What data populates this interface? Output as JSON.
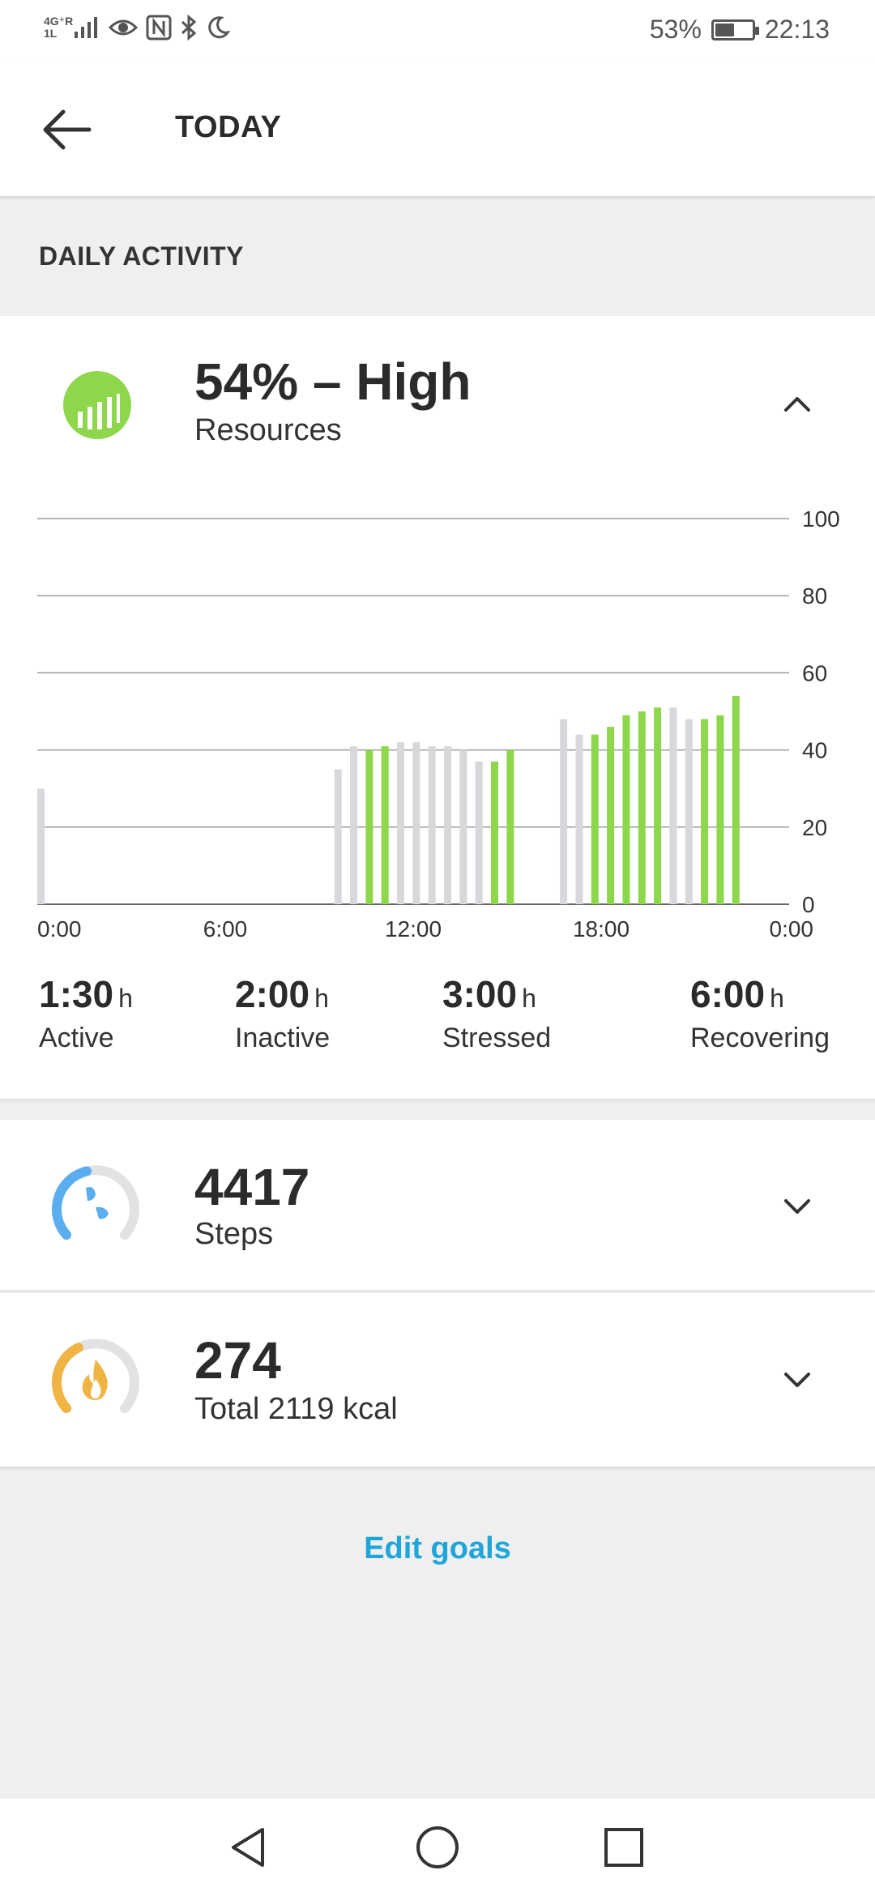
{
  "status_bar": {
    "network": "4G⁺R 1L",
    "battery_percent_label": "53%",
    "battery_level": 0.53,
    "time": "22:13",
    "icons": [
      "signal-icon",
      "eye-icon",
      "nfc-icon",
      "bluetooth-icon",
      "moon-icon",
      "battery-icon"
    ]
  },
  "header": {
    "title": "TODAY"
  },
  "section": {
    "title": "DAILY ACTIVITY"
  },
  "resources": {
    "value": "54% – High",
    "label": "Resources",
    "icon": "resources-icon",
    "accent": "#8ed64b"
  },
  "chart_data": {
    "type": "bar",
    "x_ticks": [
      "0:00",
      "6:00",
      "12:00",
      "18:00",
      "0:00"
    ],
    "y_ticks": [
      "100",
      "80",
      "60",
      "40",
      "20",
      "0"
    ],
    "ylim": [
      0,
      100
    ],
    "x_range_hours": [
      0,
      24
    ],
    "grid": true,
    "colors": {
      "inactive": "#d8d8dc",
      "recovering": "#8ed64b",
      "grid": "#9a9a9a",
      "axis": "#666666"
    },
    "bars": [
      {
        "hour": 0.1,
        "value": 30,
        "state": "inactive"
      },
      {
        "hour": 9.6,
        "value": 35,
        "state": "inactive"
      },
      {
        "hour": 10.1,
        "value": 41,
        "state": "inactive"
      },
      {
        "hour": 10.6,
        "value": 40,
        "state": "recovering"
      },
      {
        "hour": 11.1,
        "value": 41,
        "state": "recovering"
      },
      {
        "hour": 11.6,
        "value": 42,
        "state": "inactive"
      },
      {
        "hour": 12.1,
        "value": 42,
        "state": "inactive"
      },
      {
        "hour": 12.6,
        "value": 41,
        "state": "inactive"
      },
      {
        "hour": 13.1,
        "value": 41,
        "state": "inactive"
      },
      {
        "hour": 13.6,
        "value": 40,
        "state": "inactive"
      },
      {
        "hour": 14.1,
        "value": 37,
        "state": "inactive"
      },
      {
        "hour": 14.6,
        "value": 37,
        "state": "recovering"
      },
      {
        "hour": 15.1,
        "value": 40,
        "state": "recovering"
      },
      {
        "hour": 16.8,
        "value": 48,
        "state": "inactive"
      },
      {
        "hour": 17.3,
        "value": 44,
        "state": "inactive"
      },
      {
        "hour": 17.8,
        "value": 44,
        "state": "recovering"
      },
      {
        "hour": 18.3,
        "value": 46,
        "state": "recovering"
      },
      {
        "hour": 18.8,
        "value": 49,
        "state": "recovering"
      },
      {
        "hour": 19.3,
        "value": 50,
        "state": "recovering"
      },
      {
        "hour": 19.8,
        "value": 51,
        "state": "recovering"
      },
      {
        "hour": 20.3,
        "value": 51,
        "state": "inactive"
      },
      {
        "hour": 20.8,
        "value": 48,
        "state": "inactive"
      },
      {
        "hour": 21.3,
        "value": 48,
        "state": "recovering"
      },
      {
        "hour": 21.8,
        "value": 49,
        "state": "recovering"
      },
      {
        "hour": 22.3,
        "value": 54,
        "state": "recovering"
      }
    ]
  },
  "stats": [
    {
      "value": "1:30",
      "unit": "h",
      "label": "Active"
    },
    {
      "value": "2:00",
      "unit": "h",
      "label": "Inactive"
    },
    {
      "value": "3:00",
      "unit": "h",
      "label": "Stressed"
    },
    {
      "value": "6:00",
      "unit": "h",
      "label": "Recovering"
    }
  ],
  "steps": {
    "value": "4417",
    "label": "Steps",
    "icon": "steps-icon",
    "accent": "#5aaef0",
    "progress": 0.45
  },
  "calories": {
    "value": "274",
    "label": "Total 2119 kcal",
    "icon": "flame-icon",
    "accent": "#f0b444",
    "progress": 0.4
  },
  "actions": {
    "edit_goals": "Edit goals"
  },
  "nav": {
    "icons": [
      "back-triangle-icon",
      "home-circle-icon",
      "recents-square-icon"
    ]
  }
}
